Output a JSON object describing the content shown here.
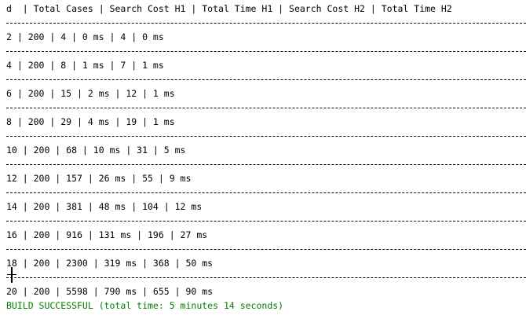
{
  "console": {
    "header": "d  | Total Cases | Search Cost H1 | Total Time H1 | Search Cost H2 | Total Time H2",
    "rows": [
      "2 | 200 | 4 | 0 ms | 4 | 0 ms",
      "4 | 200 | 8 | 1 ms | 7 | 1 ms",
      "6 | 200 | 15 | 2 ms | 12 | 1 ms",
      "8 | 200 | 29 | 4 ms | 19 | 1 ms",
      "10 | 200 | 68 | 10 ms | 31 | 5 ms",
      "12 | 200 | 157 | 26 ms | 55 | 9 ms",
      "14 | 200 | 381 | 48 ms | 104 | 12 ms",
      "16 | 200 | 916 | 131 ms | 196 | 27 ms",
      "18 | 200 | 2300 | 319 ms | 368 | 50 ms",
      "20 | 200 | 5598 | 790 ms | 655 | 90 ms"
    ],
    "build_status": "BUILD SUCCESSFUL (total time: 5 minutes 14 seconds)",
    "colors": {
      "text": "#000000",
      "success": "#008000",
      "background": "#ffffff"
    }
  }
}
